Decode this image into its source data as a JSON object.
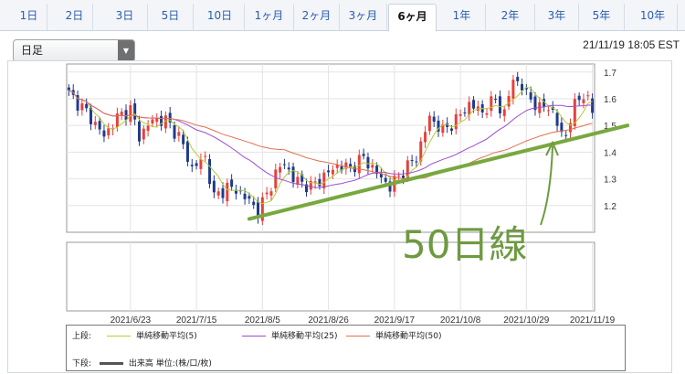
{
  "tabs": [
    {
      "label": "1日",
      "active": false
    },
    {
      "label": "2日",
      "active": false
    },
    {
      "label": "3日",
      "active": false
    },
    {
      "label": "5日",
      "active": false
    },
    {
      "label": "10日",
      "active": false
    },
    {
      "label": "1ヶ月",
      "active": false
    },
    {
      "label": "2ヶ月",
      "active": false
    },
    {
      "label": "3ヶ月",
      "active": false
    },
    {
      "label": "6ヶ月",
      "active": true
    },
    {
      "label": "1年",
      "active": false
    },
    {
      "label": "2年",
      "active": false
    },
    {
      "label": "3年",
      "active": false
    },
    {
      "label": "5年",
      "active": false
    },
    {
      "label": "10年",
      "active": false
    }
  ],
  "interval_select": {
    "value": "日足"
  },
  "timestamp": "21/11/19 18:05 EST",
  "annotation": {
    "text": "50日線",
    "color": "#6e9a40"
  },
  "colors": {
    "up": "#e8403a",
    "down": "#1f3a8c",
    "ma5": "#b5cc3a",
    "ma25": "#a04bd0",
    "ma50": "#e07050",
    "trend": "#78a83e"
  },
  "legend": {
    "upper_label": "上段:",
    "lower_label": "下段:",
    "items": [
      {
        "label": "単純移動平均(5)",
        "color": "#b5cc3a"
      },
      {
        "label": "単純移動平均(25)",
        "color": "#a04bd0"
      },
      {
        "label": "単純移動平均(50)",
        "color": "#e07050"
      }
    ],
    "volume": {
      "label": "出来高 単位:(株/口/枚)",
      "color": "#555555"
    }
  },
  "chart_data": {
    "type": "line",
    "title": "",
    "xlabel": "",
    "ylabel": "",
    "ylim": [
      1.1,
      1.73
    ],
    "yticks": [
      1.2,
      1.3,
      1.4,
      1.5,
      1.6,
      1.7
    ],
    "x_tick_labels": [
      "2021/6/23",
      "2021/7/15",
      "2021/8/5",
      "2021/8/26",
      "2021/9/17",
      "2021/10/8",
      "2021/10/29",
      "2021/11/19"
    ],
    "x_tick_index": [
      14,
      29,
      44,
      59,
      74,
      89,
      104,
      119
    ],
    "n_sessions": 120,
    "grid": true,
    "price_anchors": [
      [
        0,
        1.62
      ],
      [
        4,
        1.55
      ],
      [
        8,
        1.46
      ],
      [
        11,
        1.53
      ],
      [
        14,
        1.56
      ],
      [
        16,
        1.46
      ],
      [
        19,
        1.52
      ],
      [
        22,
        1.52
      ],
      [
        25,
        1.46
      ],
      [
        28,
        1.34
      ],
      [
        31,
        1.38
      ],
      [
        33,
        1.23
      ],
      [
        36,
        1.27
      ],
      [
        39,
        1.25
      ],
      [
        43,
        1.18
      ],
      [
        45,
        1.24
      ],
      [
        47,
        1.32
      ],
      [
        49,
        1.36
      ],
      [
        51,
        1.3
      ],
      [
        55,
        1.27
      ],
      [
        58,
        1.31
      ],
      [
        61,
        1.35
      ],
      [
        64,
        1.34
      ],
      [
        67,
        1.38
      ],
      [
        70,
        1.32
      ],
      [
        73,
        1.27
      ],
      [
        76,
        1.33
      ],
      [
        79,
        1.38
      ],
      [
        82,
        1.53
      ],
      [
        85,
        1.48
      ],
      [
        88,
        1.52
      ],
      [
        91,
        1.58
      ],
      [
        94,
        1.55
      ],
      [
        97,
        1.6
      ],
      [
        99,
        1.54
      ],
      [
        101,
        1.68
      ],
      [
        103,
        1.64
      ],
      [
        105,
        1.6
      ],
      [
        107,
        1.56
      ],
      [
        109,
        1.58
      ],
      [
        111,
        1.5
      ],
      [
        113,
        1.46
      ],
      [
        115,
        1.58
      ],
      [
        117,
        1.62
      ],
      [
        119,
        1.55
      ]
    ],
    "series": [
      {
        "name": "単純移動平均(5)",
        "period": 5
      },
      {
        "name": "単純移動平均(25)",
        "period": 25
      },
      {
        "name": "単純移動平均(50)",
        "period": 50
      }
    ],
    "trendline": {
      "from": [
        41,
        1.15
      ],
      "to": [
        127,
        1.5
      ]
    },
    "volume_panel": {
      "shown": true,
      "values": []
    }
  }
}
